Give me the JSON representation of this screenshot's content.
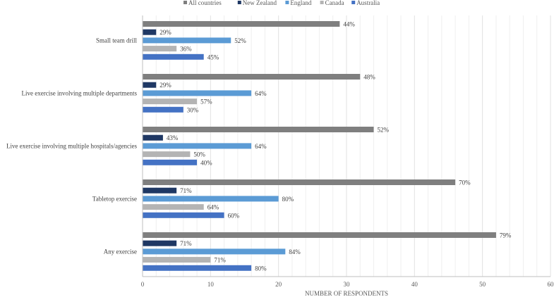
{
  "chart_data": {
    "type": "bar",
    "orientation": "horizontal",
    "xlabel": "NUMBER OF RESPONDENTS",
    "xlim": [
      0,
      60
    ],
    "xticks": [
      0,
      10,
      20,
      30,
      40,
      50,
      60
    ],
    "grid": "vertical minor gridlines",
    "legend_position": "top",
    "categories": [
      "Small team drill",
      "Live exercise involving multiple departments",
      "Live exercise involving multiple hospitals/agencies",
      "Tabletop exercise",
      "Any exercise"
    ],
    "series": [
      {
        "name": "All countries",
        "color": "#7f7f7f",
        "values": [
          29,
          32,
          34,
          46,
          52
        ],
        "labels": [
          "44%",
          "48%",
          "52%",
          "70%",
          "79%"
        ]
      },
      {
        "name": "New Zealand",
        "color": "#1f3864",
        "values": [
          2,
          2,
          3,
          5,
          5
        ],
        "labels": [
          "29%",
          "29%",
          "43%",
          "71%",
          "71%"
        ]
      },
      {
        "name": "England",
        "color": "#5b9bd5",
        "values": [
          13,
          16,
          16,
          20,
          21
        ],
        "labels": [
          "52%",
          "64%",
          "64%",
          "80%",
          "84%"
        ]
      },
      {
        "name": "Canada",
        "color": "#b4b4b4",
        "values": [
          5,
          8,
          7,
          9,
          10
        ],
        "labels": [
          "36%",
          "57%",
          "50%",
          "64%",
          "71%"
        ]
      },
      {
        "name": "Australia",
        "color": "#4472c4",
        "values": [
          9,
          6,
          8,
          12,
          16
        ],
        "labels": [
          "45%",
          "30%",
          "40%",
          "60%",
          "80%"
        ]
      }
    ]
  }
}
